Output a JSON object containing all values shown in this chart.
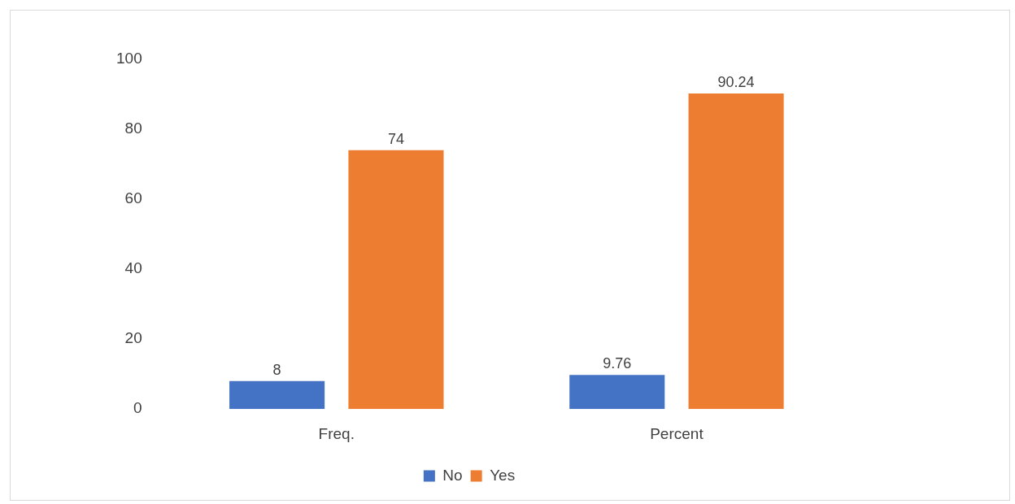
{
  "chart_data": {
    "type": "bar",
    "categories": [
      "Freq.",
      "Percent"
    ],
    "series": [
      {
        "name": "No",
        "color": "#4472c4",
        "values": [
          8,
          9.76
        ]
      },
      {
        "name": "Yes",
        "color": "#ed7d31",
        "values": [
          74,
          90.24
        ]
      }
    ],
    "ylim": [
      0,
      100
    ],
    "yticks": [
      0,
      20,
      40,
      60,
      80,
      100
    ],
    "grid": false,
    "legend": "bottom",
    "data_labels": true
  }
}
